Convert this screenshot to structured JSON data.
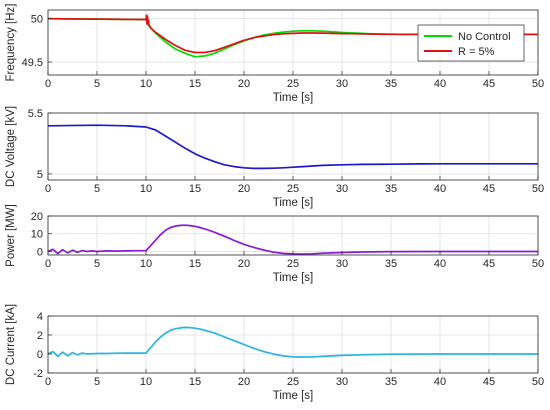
{
  "chart_data": [
    {
      "type": "line",
      "xlabel": "Time [s]",
      "ylabel": "Frequency [Hz]",
      "xlim": [
        0,
        50
      ],
      "ylim": [
        49.35,
        50.1
      ],
      "xticks": [
        0,
        5,
        10,
        15,
        20,
        25,
        30,
        35,
        40,
        45,
        50
      ],
      "yticks": [
        49.5,
        50
      ],
      "ytick_labels": [
        "49.5",
        "50"
      ],
      "grid": true,
      "legend": "top-right",
      "series": [
        {
          "name": "No Control",
          "color": "#00dd00",
          "x": [
            0,
            5,
            9.9,
            10.0,
            10.2,
            10.5,
            11,
            12,
            13,
            14,
            15,
            16,
            17,
            18,
            19,
            20,
            21,
            22,
            23,
            24,
            25,
            26,
            27,
            28,
            29,
            30,
            31,
            32,
            33,
            34,
            35,
            36,
            37,
            38,
            39,
            40,
            42,
            44,
            46,
            48,
            50
          ],
          "y": [
            50.0,
            49.995,
            49.99,
            49.99,
            49.93,
            49.89,
            49.83,
            49.73,
            49.65,
            49.6,
            49.56,
            49.57,
            49.6,
            49.65,
            49.7,
            49.745,
            49.78,
            49.81,
            49.83,
            49.845,
            49.855,
            49.86,
            49.86,
            49.855,
            49.85,
            49.84,
            49.835,
            49.83,
            49.825,
            49.82,
            49.82,
            49.818,
            49.818,
            49.818,
            49.818,
            49.818,
            49.818,
            49.818,
            49.818,
            49.818,
            49.818
          ]
        },
        {
          "name": "R = 5%",
          "color": "#dd1111",
          "x": [
            0,
            5,
            9.9,
            10.0,
            10.05,
            10.1,
            10.15,
            10.2,
            10.25,
            10.3,
            10.5,
            11,
            12,
            13,
            14,
            15,
            16,
            17,
            18,
            19,
            20,
            21,
            22,
            23,
            24,
            25,
            26,
            27,
            28,
            29,
            30,
            31,
            32,
            33,
            34,
            35,
            36,
            38,
            40,
            42,
            44,
            46,
            48,
            50
          ],
          "y": [
            50.0,
            49.995,
            49.99,
            49.99,
            50.04,
            49.94,
            50.03,
            49.95,
            49.98,
            49.93,
            49.89,
            49.84,
            49.76,
            49.69,
            49.635,
            49.61,
            49.61,
            49.63,
            49.67,
            49.71,
            49.75,
            49.78,
            49.8,
            49.815,
            49.825,
            49.83,
            49.835,
            49.835,
            49.833,
            49.83,
            49.828,
            49.826,
            49.824,
            49.823,
            49.822,
            49.821,
            49.82,
            49.82,
            49.82,
            49.82,
            49.82,
            49.82,
            49.82,
            49.82
          ]
        }
      ]
    },
    {
      "type": "line",
      "xlabel": "Time [s]",
      "ylabel": "DC Voltage [kV]",
      "xlim": [
        0,
        50
      ],
      "ylim": [
        4.95,
        5.5
      ],
      "xticks": [
        0,
        5,
        10,
        15,
        20,
        25,
        30,
        35,
        40,
        45,
        50
      ],
      "yticks": [
        5,
        5.5
      ],
      "ytick_labels": [
        "5",
        "5.5"
      ],
      "grid": true,
      "series": [
        {
          "color": "#1a1acc",
          "x": [
            0,
            5,
            8,
            10,
            11,
            12,
            13,
            14,
            15,
            16,
            17,
            18,
            19,
            20,
            21,
            22,
            23,
            24,
            25,
            26,
            27,
            28,
            30,
            32,
            35,
            38,
            40,
            45,
            50
          ],
          "y": [
            5.395,
            5.4,
            5.395,
            5.385,
            5.36,
            5.31,
            5.26,
            5.21,
            5.165,
            5.13,
            5.1,
            5.075,
            5.06,
            5.05,
            5.045,
            5.045,
            5.047,
            5.05,
            5.055,
            5.06,
            5.065,
            5.07,
            5.075,
            5.078,
            5.08,
            5.082,
            5.083,
            5.083,
            5.083
          ]
        }
      ]
    },
    {
      "type": "line",
      "xlabel": "Time [s]",
      "ylabel": "Power [MW]",
      "xlim": [
        0,
        50
      ],
      "ylim": [
        -2,
        20
      ],
      "xticks": [
        0,
        5,
        10,
        15,
        20,
        25,
        30,
        35,
        40,
        45,
        50
      ],
      "yticks": [
        0,
        10,
        20
      ],
      "ytick_labels": [
        "0",
        "10",
        "20"
      ],
      "grid": true,
      "series": [
        {
          "color": "#8a1ad6",
          "x": [
            0,
            0.5,
            1,
            1.5,
            2,
            2.5,
            3,
            3.5,
            4,
            4.5,
            5,
            6,
            7,
            8,
            9,
            10,
            10.5,
            11,
            11.5,
            12,
            12.5,
            13,
            13.5,
            14,
            14.5,
            15,
            15.5,
            16,
            16.5,
            17,
            17.5,
            18,
            18.5,
            19,
            19.5,
            20,
            21,
            22,
            23,
            24,
            25,
            26,
            27,
            28,
            30,
            32,
            35,
            40,
            45,
            50
          ],
          "y": [
            0,
            1.2,
            -1.2,
            1.0,
            -0.8,
            0.7,
            -0.5,
            0.5,
            0,
            0.3,
            0,
            0.3,
            0.2,
            0.3,
            0.4,
            0.4,
            3.5,
            6.5,
            9.5,
            12,
            13.5,
            14.3,
            14.7,
            14.8,
            14.6,
            14.2,
            13.5,
            12.7,
            11.8,
            10.8,
            9.7,
            8.6,
            7.4,
            6.2,
            5.1,
            4.0,
            2.3,
            0.8,
            -0.4,
            -1.1,
            -1.4,
            -1.5,
            -1.3,
            -1.0,
            -0.6,
            -0.3,
            -0.1,
            0,
            0,
            0
          ]
        }
      ]
    },
    {
      "type": "line",
      "xlabel": "Time [s]",
      "ylabel": "DC Current [kA]",
      "xlim": [
        0,
        50
      ],
      "ylim": [
        -2,
        4
      ],
      "xticks": [
        0,
        5,
        10,
        15,
        20,
        25,
        30,
        35,
        40,
        45,
        50
      ],
      "yticks": [
        -2,
        0,
        2,
        4
      ],
      "ytick_labels": [
        "-2",
        "0",
        "2",
        "4"
      ],
      "grid": true,
      "series": [
        {
          "color": "#2ab4e0",
          "x": [
            0,
            0.5,
            1,
            1.5,
            2,
            2.5,
            3,
            3.5,
            4,
            5,
            6,
            7,
            8,
            9,
            10,
            10.5,
            11,
            11.5,
            12,
            12.5,
            13,
            13.5,
            14,
            14.5,
            15,
            15.5,
            16,
            16.5,
            17,
            17.5,
            18,
            18.5,
            19,
            19.5,
            20,
            21,
            22,
            23,
            24,
            25,
            26,
            27,
            28,
            30,
            32,
            35,
            40,
            45,
            50
          ],
          "y": [
            0,
            0.25,
            -0.25,
            0.2,
            -0.2,
            0.15,
            -0.1,
            0.1,
            0,
            0.05,
            0.05,
            0.08,
            0.1,
            0.1,
            0.1,
            0.7,
            1.3,
            1.8,
            2.2,
            2.5,
            2.65,
            2.75,
            2.8,
            2.78,
            2.72,
            2.62,
            2.5,
            2.35,
            2.2,
            2.0,
            1.8,
            1.6,
            1.4,
            1.2,
            1.0,
            0.6,
            0.25,
            0,
            -0.2,
            -0.3,
            -0.32,
            -0.3,
            -0.25,
            -0.15,
            -0.08,
            -0.02,
            0,
            0,
            0
          ]
        }
      ]
    }
  ]
}
